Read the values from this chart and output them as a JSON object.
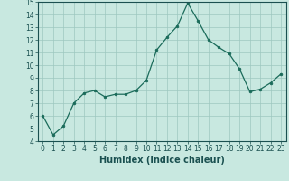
{
  "x": [
    0,
    1,
    2,
    3,
    4,
    5,
    6,
    7,
    8,
    9,
    10,
    11,
    12,
    13,
    14,
    15,
    16,
    17,
    18,
    19,
    20,
    21,
    22,
    23
  ],
  "y": [
    6.0,
    4.5,
    5.2,
    7.0,
    7.8,
    8.0,
    7.5,
    7.7,
    7.7,
    8.0,
    8.8,
    11.2,
    12.2,
    13.1,
    14.9,
    13.5,
    12.0,
    11.4,
    10.9,
    9.7,
    7.9,
    8.1,
    8.6,
    9.3
  ],
  "line_color": "#1a6b5a",
  "marker": "o",
  "marker_size": 2.0,
  "bg_color": "#c8e8e0",
  "grid_color": "#9dc8c0",
  "xlabel": "Humidex (Indice chaleur)",
  "ylim": [
    4,
    15
  ],
  "xlim_min": -0.5,
  "xlim_max": 23.5,
  "yticks": [
    4,
    5,
    6,
    7,
    8,
    9,
    10,
    11,
    12,
    13,
    14,
    15
  ],
  "xticks": [
    0,
    1,
    2,
    3,
    4,
    5,
    6,
    7,
    8,
    9,
    10,
    11,
    12,
    13,
    14,
    15,
    16,
    17,
    18,
    19,
    20,
    21,
    22,
    23
  ],
  "tick_color": "#1a5050",
  "label_fontsize": 7,
  "tick_fontsize": 5.5
}
